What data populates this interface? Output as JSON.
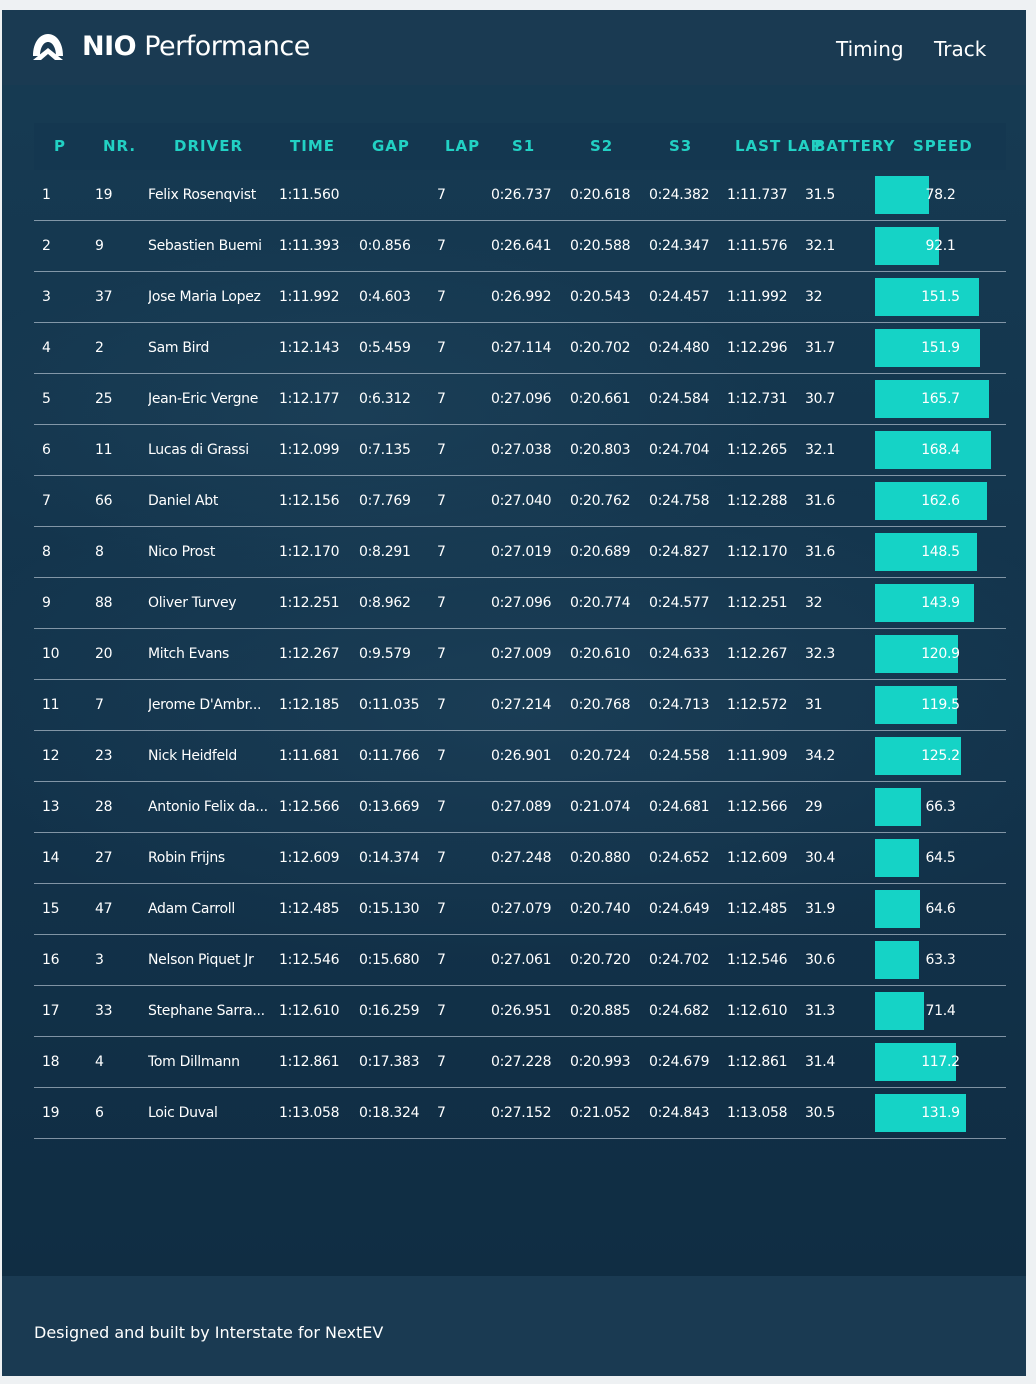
{
  "header": {
    "brand_bold": "NIO",
    "brand_light": "Performance",
    "nav": [
      "Timing",
      "Track"
    ]
  },
  "table": {
    "columns": [
      "P",
      "NR.",
      "DRIVER",
      "TIME",
      "GAP",
      "LAP",
      "S1",
      "S2",
      "S3",
      "LAST LAP",
      "BATTERY",
      "SPEED"
    ],
    "speed_max": 190,
    "rows": [
      {
        "p": "1",
        "nr": "19",
        "driver": "Felix Rosenqvist",
        "time": "1:11.560",
        "gap": "",
        "lap": "7",
        "s1": "0:26.737",
        "s2": "0:20.618",
        "s3": "0:24.382",
        "last": "1:11.737",
        "battery": "31.5",
        "speed": "78.2"
      },
      {
        "p": "2",
        "nr": "9",
        "driver": "Sebastien Buemi",
        "time": "1:11.393",
        "gap": "0:0.856",
        "lap": "7",
        "s1": "0:26.641",
        "s2": "0:20.588",
        "s3": "0:24.347",
        "last": "1:11.576",
        "battery": "32.1",
        "speed": "92.1"
      },
      {
        "p": "3",
        "nr": "37",
        "driver": "Jose Maria Lopez",
        "time": "1:11.992",
        "gap": "0:4.603",
        "lap": "7",
        "s1": "0:26.992",
        "s2": "0:20.543",
        "s3": "0:24.457",
        "last": "1:11.992",
        "battery": "32",
        "speed": "151.5"
      },
      {
        "p": "4",
        "nr": "2",
        "driver": "Sam Bird",
        "time": "1:12.143",
        "gap": "0:5.459",
        "lap": "7",
        "s1": "0:27.114",
        "s2": "0:20.702",
        "s3": "0:24.480",
        "last": "1:12.296",
        "battery": "31.7",
        "speed": "151.9"
      },
      {
        "p": "5",
        "nr": "25",
        "driver": "Jean-Eric Vergne",
        "time": "1:12.177",
        "gap": "0:6.312",
        "lap": "7",
        "s1": "0:27.096",
        "s2": "0:20.661",
        "s3": "0:24.584",
        "last": "1:12.731",
        "battery": "30.7",
        "speed": "165.7"
      },
      {
        "p": "6",
        "nr": "11",
        "driver": "Lucas di Grassi",
        "time": "1:12.099",
        "gap": "0:7.135",
        "lap": "7",
        "s1": "0:27.038",
        "s2": "0:20.803",
        "s3": "0:24.704",
        "last": "1:12.265",
        "battery": "32.1",
        "speed": "168.4"
      },
      {
        "p": "7",
        "nr": "66",
        "driver": "Daniel Abt",
        "time": "1:12.156",
        "gap": "0:7.769",
        "lap": "7",
        "s1": "0:27.040",
        "s2": "0:20.762",
        "s3": "0:24.758",
        "last": "1:12.288",
        "battery": "31.6",
        "speed": "162.6"
      },
      {
        "p": "8",
        "nr": "8",
        "driver": "Nico Prost",
        "time": "1:12.170",
        "gap": "0:8.291",
        "lap": "7",
        "s1": "0:27.019",
        "s2": "0:20.689",
        "s3": "0:24.827",
        "last": "1:12.170",
        "battery": "31.6",
        "speed": "148.5"
      },
      {
        "p": "9",
        "nr": "88",
        "driver": "Oliver Turvey",
        "time": "1:12.251",
        "gap": "0:8.962",
        "lap": "7",
        "s1": "0:27.096",
        "s2": "0:20.774",
        "s3": "0:24.577",
        "last": "1:12.251",
        "battery": "32",
        "speed": "143.9"
      },
      {
        "p": "10",
        "nr": "20",
        "driver": "Mitch Evans",
        "time": "1:12.267",
        "gap": "0:9.579",
        "lap": "7",
        "s1": "0:27.009",
        "s2": "0:20.610",
        "s3": "0:24.633",
        "last": "1:12.267",
        "battery": "32.3",
        "speed": "120.9"
      },
      {
        "p": "11",
        "nr": "7",
        "driver": "Jerome D'Ambr...",
        "time": "1:12.185",
        "gap": "0:11.035",
        "lap": "7",
        "s1": "0:27.214",
        "s2": "0:20.768",
        "s3": "0:24.713",
        "last": "1:12.572",
        "battery": "31",
        "speed": "119.5"
      },
      {
        "p": "12",
        "nr": "23",
        "driver": "Nick Heidfeld",
        "time": "1:11.681",
        "gap": "0:11.766",
        "lap": "7",
        "s1": "0:26.901",
        "s2": "0:20.724",
        "s3": "0:24.558",
        "last": "1:11.909",
        "battery": "34.2",
        "speed": "125.2"
      },
      {
        "p": "13",
        "nr": "28",
        "driver": "Antonio Felix da...",
        "time": "1:12.566",
        "gap": "0:13.669",
        "lap": "7",
        "s1": "0:27.089",
        "s2": "0:21.074",
        "s3": "0:24.681",
        "last": "1:12.566",
        "battery": "29",
        "speed": "66.3"
      },
      {
        "p": "14",
        "nr": "27",
        "driver": "Robin Frijns",
        "time": "1:12.609",
        "gap": "0:14.374",
        "lap": "7",
        "s1": "0:27.248",
        "s2": "0:20.880",
        "s3": "0:24.652",
        "last": "1:12.609",
        "battery": "30.4",
        "speed": "64.5"
      },
      {
        "p": "15",
        "nr": "47",
        "driver": "Adam Carroll",
        "time": "1:12.485",
        "gap": "0:15.130",
        "lap": "7",
        "s1": "0:27.079",
        "s2": "0:20.740",
        "s3": "0:24.649",
        "last": "1:12.485",
        "battery": "31.9",
        "speed": "64.6"
      },
      {
        "p": "16",
        "nr": "3",
        "driver": "Nelson Piquet Jr",
        "time": "1:12.546",
        "gap": "0:15.680",
        "lap": "7",
        "s1": "0:27.061",
        "s2": "0:20.720",
        "s3": "0:24.702",
        "last": "1:12.546",
        "battery": "30.6",
        "speed": "63.3"
      },
      {
        "p": "17",
        "nr": "33",
        "driver": "Stephane Sarra...",
        "time": "1:12.610",
        "gap": "0:16.259",
        "lap": "7",
        "s1": "0:26.951",
        "s2": "0:20.885",
        "s3": "0:24.682",
        "last": "1:12.610",
        "battery": "31.3",
        "speed": "71.4"
      },
      {
        "p": "18",
        "nr": "4",
        "driver": "Tom Dillmann",
        "time": "1:12.861",
        "gap": "0:17.383",
        "lap": "7",
        "s1": "0:27.228",
        "s2": "0:20.993",
        "s3": "0:24.679",
        "last": "1:12.861",
        "battery": "31.4",
        "speed": "117.2"
      },
      {
        "p": "19",
        "nr": "6",
        "driver": "Loic Duval",
        "time": "1:13.058",
        "gap": "0:18.324",
        "lap": "7",
        "s1": "0:27.152",
        "s2": "0:21.052",
        "s3": "0:24.843",
        "last": "1:13.058",
        "battery": "30.5",
        "speed": "131.9"
      }
    ]
  },
  "footer": {
    "text": "Designed and built by Interstate for NextEV"
  },
  "colors": {
    "accent": "#22d1c4",
    "bar": "#15d3c6",
    "background": "#12324a",
    "header": "#1a3a52"
  }
}
